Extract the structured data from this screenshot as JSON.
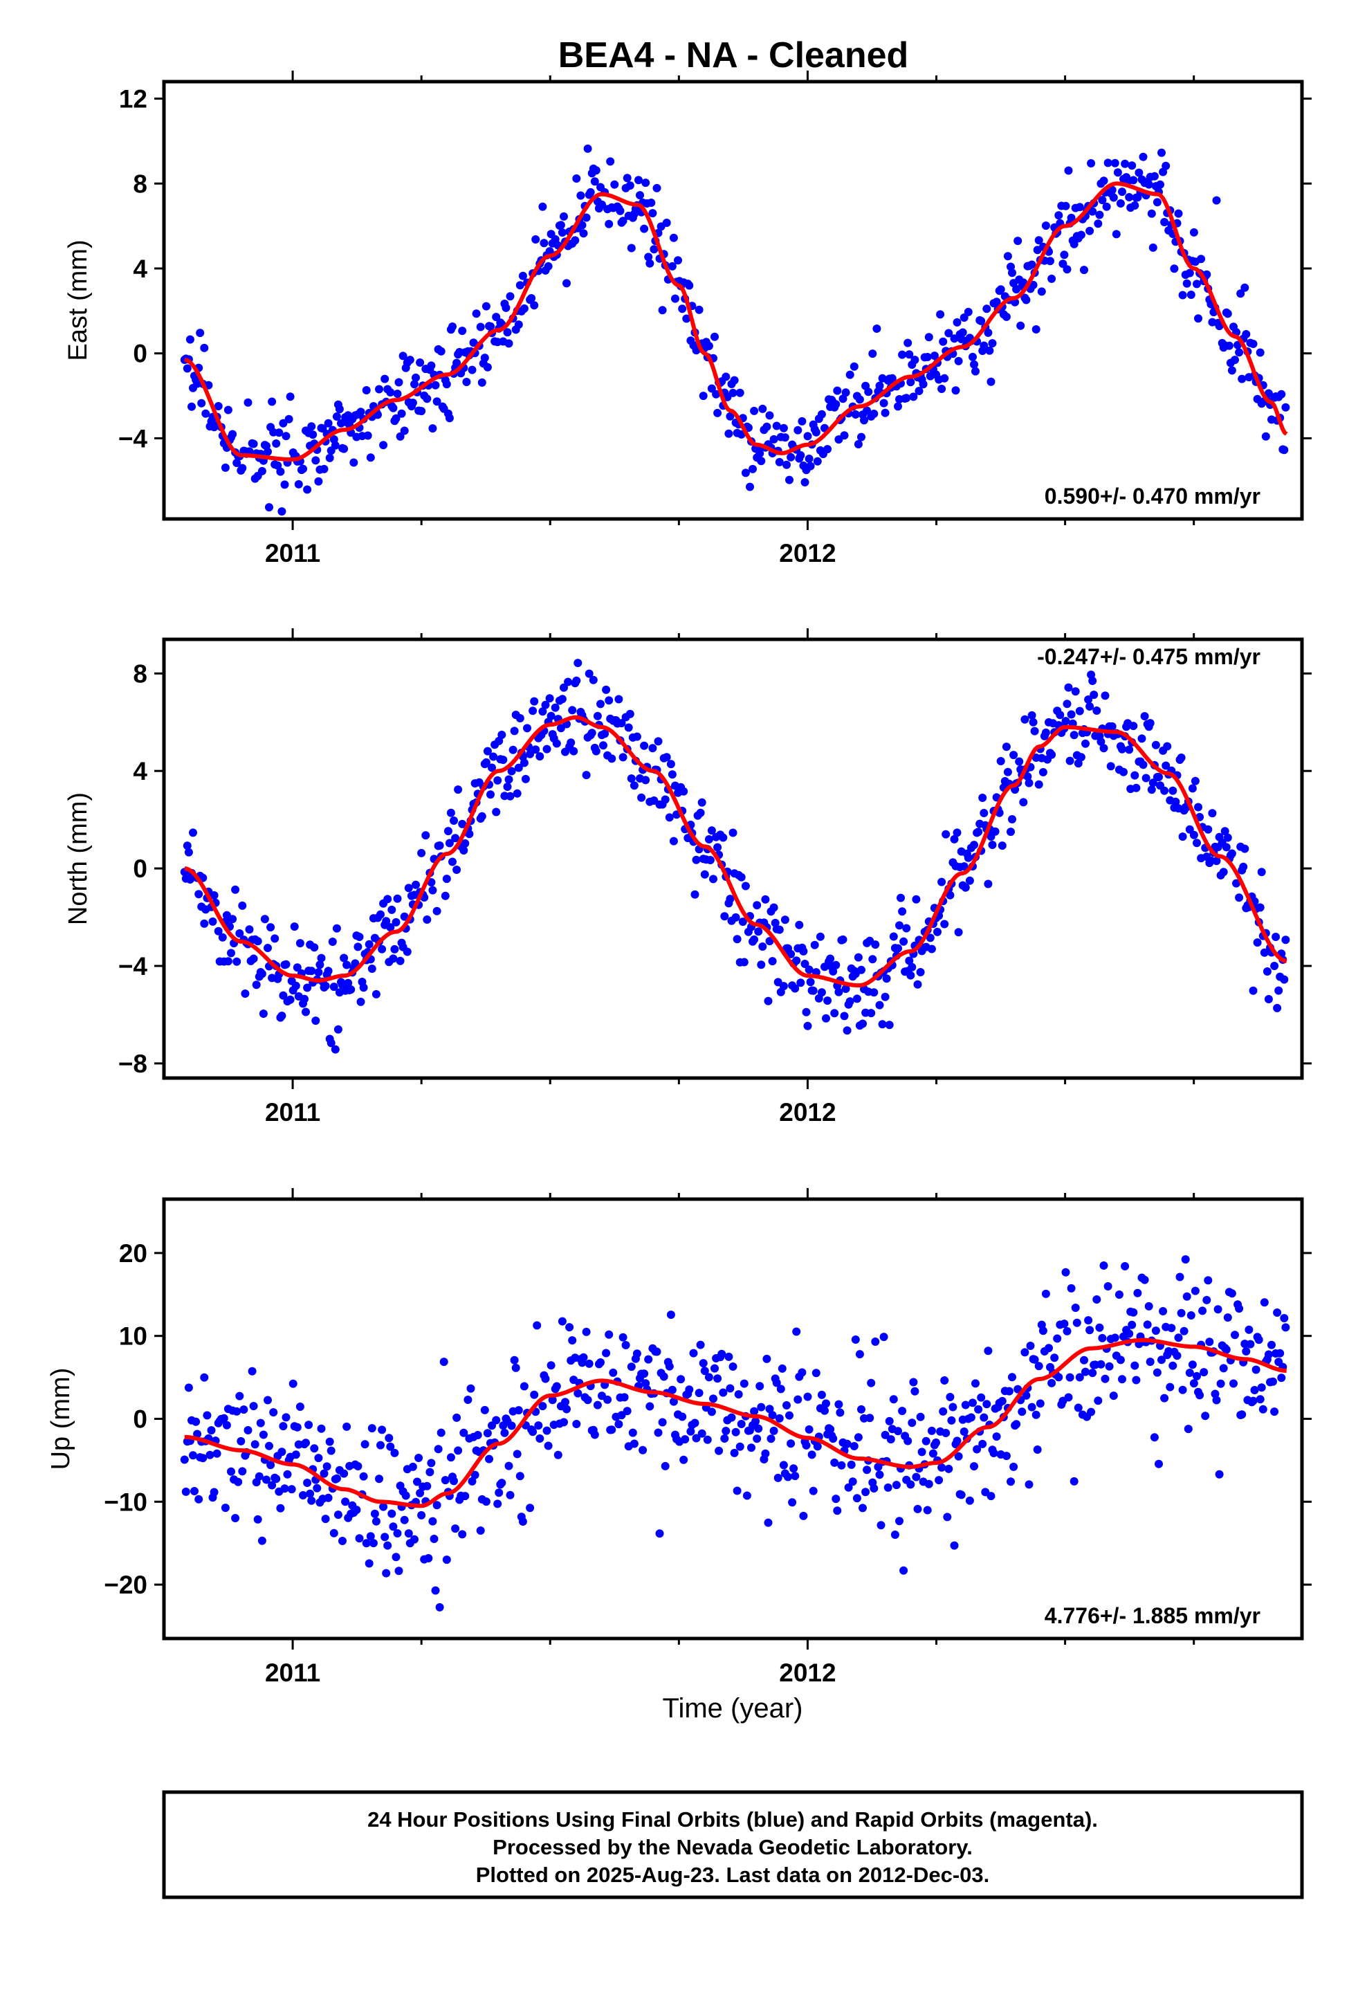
{
  "title": "BEA4  - NA - Cleaned",
  "xlabel": "Time (year)",
  "footer": {
    "line1": "24 Hour Positions Using Final Orbits (blue) and Rapid Orbits (magenta).",
    "line2": "Processed by the Nevada Geodetic Laboratory.",
    "line3": "Plotted on 2025-Aug-23. Last data on 2012-Dec-03."
  },
  "colors": {
    "data": "#0000ff",
    "fit": "#ff0000",
    "frame": "#000000"
  },
  "chart_data": [
    {
      "type": "scatter",
      "component": "east",
      "ylabel": "East (mm)",
      "rate_text": "0.590+/- 0.470 mm/yr",
      "rate_position": "bottom-right",
      "xlim": [
        2010.75,
        2012.96
      ],
      "ylim": [
        -7.8,
        12.8
      ],
      "yticks": [
        -4,
        0,
        4,
        8,
        12
      ],
      "ytick_labels": [
        "−4",
        "0",
        "4",
        "8",
        "12"
      ],
      "xticks": [
        2011,
        2012
      ],
      "xtick_labels": [
        "2011",
        "2012"
      ],
      "x_minor_ticks": [
        2011.25,
        2011.5,
        2011.75,
        2012.25,
        2012.5,
        2012.75
      ],
      "grid": false,
      "fit": {
        "x": [
          2010.79,
          2010.9,
          2011.0,
          2011.1,
          2011.2,
          2011.3,
          2011.4,
          2011.5,
          2011.6,
          2011.67,
          2011.75,
          2011.8,
          2011.85,
          2011.9,
          2011.95,
          2012.0,
          2012.1,
          2012.2,
          2012.3,
          2012.4,
          2012.5,
          2012.6,
          2012.68,
          2012.75,
          2012.83,
          2012.9,
          2012.93
        ],
        "y": [
          -0.3,
          -4.8,
          -5.0,
          -3.6,
          -2.2,
          -1.0,
          1.1,
          4.6,
          7.5,
          7.0,
          3.2,
          0.0,
          -2.7,
          -4.3,
          -4.7,
          -4.3,
          -2.5,
          -1.1,
          0.3,
          2.6,
          6.0,
          8.0,
          7.5,
          4.0,
          0.8,
          -2.3,
          -3.8
        ]
      },
      "noise": 0.9
    },
    {
      "type": "scatter",
      "component": "north",
      "ylabel": "North (mm)",
      "rate_text": "-0.247+/- 0.475 mm/yr",
      "rate_position": "top-right",
      "xlim": [
        2010.75,
        2012.96
      ],
      "ylim": [
        -8.6,
        9.4
      ],
      "yticks": [
        -8,
        -4,
        0,
        4,
        8
      ],
      "ytick_labels": [
        "−8",
        "−4",
        "0",
        "4",
        "8"
      ],
      "xticks": [
        2011,
        2012
      ],
      "xtick_labels": [
        "2011",
        "2012"
      ],
      "x_minor_ticks": [
        2011.25,
        2011.5,
        2011.75,
        2012.25,
        2012.5,
        2012.75
      ],
      "grid": false,
      "fit": {
        "x": [
          2010.79,
          2010.9,
          2011.0,
          2011.05,
          2011.1,
          2011.2,
          2011.3,
          2011.4,
          2011.5,
          2011.55,
          2011.6,
          2011.7,
          2011.8,
          2011.9,
          2012.0,
          2012.1,
          2012.2,
          2012.3,
          2012.4,
          2012.45,
          2012.5,
          2012.6,
          2012.7,
          2012.8,
          2012.93
        ],
        "y": [
          0.0,
          -3.0,
          -4.4,
          -4.6,
          -4.4,
          -2.6,
          0.6,
          4.0,
          5.9,
          6.2,
          5.8,
          4.0,
          0.9,
          -2.3,
          -4.4,
          -4.8,
          -3.4,
          -0.2,
          3.4,
          5.0,
          5.8,
          5.6,
          3.9,
          0.5,
          -3.8
        ]
      },
      "noise": 0.95
    },
    {
      "type": "scatter",
      "component": "up",
      "ylabel": "Up (mm)",
      "rate_text": "4.776+/- 1.885 mm/yr",
      "rate_position": "bottom-right",
      "xlim": [
        2010.75,
        2012.96
      ],
      "ylim": [
        -26.5,
        26.5
      ],
      "yticks": [
        -20,
        -10,
        0,
        10,
        20
      ],
      "ytick_labels": [
        "−20",
        "−10",
        "0",
        "10",
        "20"
      ],
      "xticks": [
        2011,
        2012
      ],
      "xtick_labels": [
        "2011",
        "2012"
      ],
      "x_minor_ticks": [
        2011.25,
        2011.5,
        2011.75,
        2012.25,
        2012.5,
        2012.75
      ],
      "grid": false,
      "fit": {
        "x": [
          2010.79,
          2010.9,
          2011.0,
          2011.1,
          2011.17,
          2011.25,
          2011.3,
          2011.4,
          2011.5,
          2011.6,
          2011.7,
          2011.8,
          2011.9,
          2012.0,
          2012.1,
          2012.2,
          2012.25,
          2012.35,
          2012.45,
          2012.55,
          2012.65,
          2012.75,
          2012.85,
          2012.93
        ],
        "y": [
          -2.2,
          -3.8,
          -5.5,
          -8.5,
          -10.0,
          -10.5,
          -9.0,
          -3.0,
          2.8,
          4.6,
          3.2,
          1.8,
          0.3,
          -2.3,
          -4.8,
          -5.8,
          -5.3,
          -1.0,
          4.8,
          8.5,
          9.5,
          8.7,
          7.2,
          5.8
        ]
      },
      "noise": 4.4
    }
  ]
}
